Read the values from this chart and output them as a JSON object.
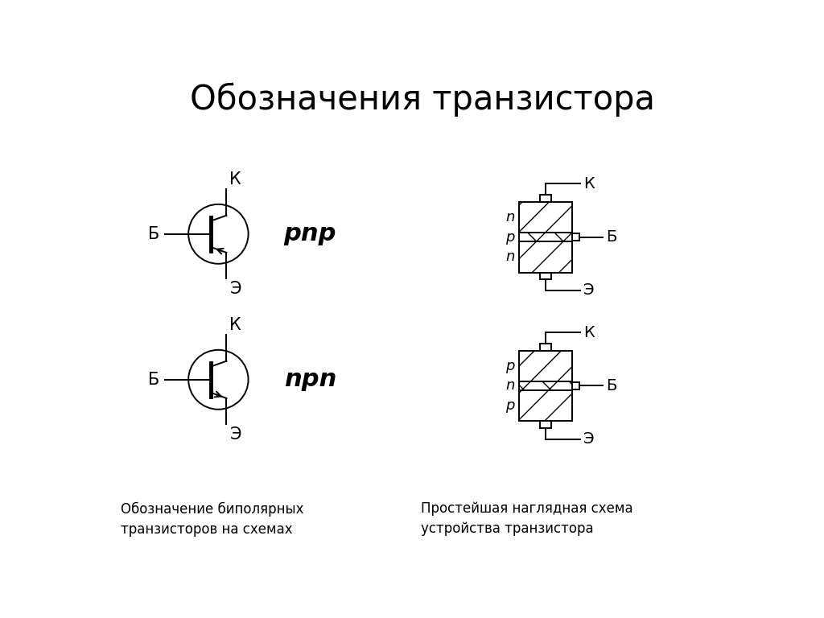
{
  "title": "Обозначения транзистора",
  "title_fontsize": 30,
  "background_color": "#ffffff",
  "text_color": "#000000",
  "label_K": "К",
  "label_B": "Б",
  "label_E": "Э",
  "label_pnp": "рnр",
  "label_npn": "nрn",
  "caption_left": "Обозначение биполярных\nтранзисторов на схемах",
  "caption_right": "Простейшая наглядная схема\nустройства транзистора"
}
